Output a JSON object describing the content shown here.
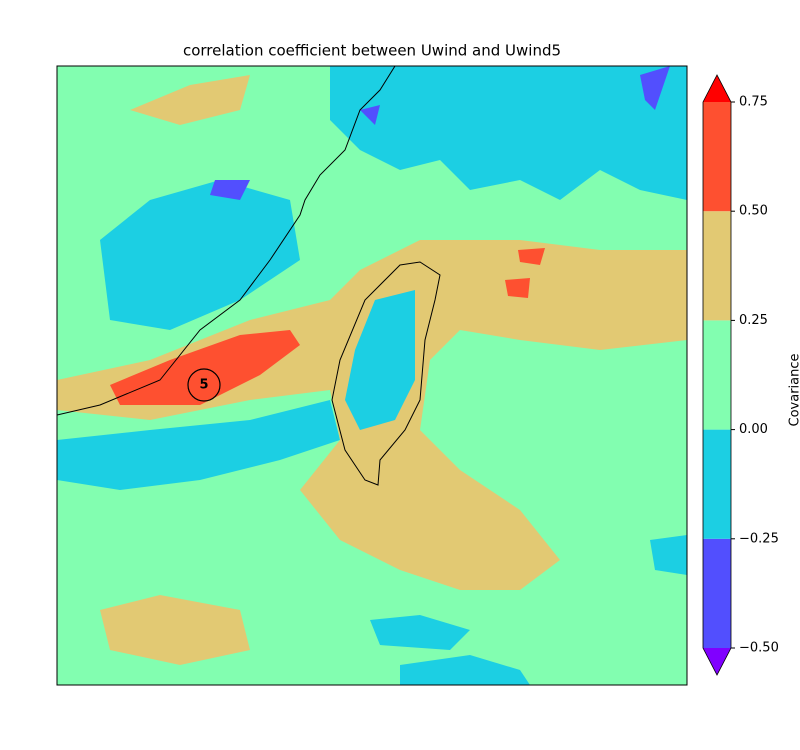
{
  "chart_data": {
    "type": "contour-map",
    "title": "correlation coefficient between Uwind and Uwind5",
    "annotations": [
      {
        "text": "5"
      }
    ],
    "colorbar": {
      "label": "Covariance",
      "boundaries": [
        -0.5,
        -0.25,
        0,
        0.25,
        0.5,
        0.75
      ],
      "colors": [
        "#524ffe",
        "#1ccfe3",
        "#82feb0",
        "#e2c973",
        "#fe5030"
      ],
      "under_color": "#8000ff",
      "over_color": "#ff0000",
      "ylim": [
        -0.5,
        0.75
      ],
      "ticks": [
        {
          "value": -0.5,
          "label": "−0.50"
        },
        {
          "value": -0.25,
          "label": "−0.25"
        },
        {
          "value": 0,
          "label": "0.00"
        },
        {
          "value": 0.25,
          "label": "0.25"
        },
        {
          "value": 0.5,
          "label": "0.50"
        },
        {
          "value": 0.75,
          "label": "0.75"
        }
      ]
    }
  }
}
